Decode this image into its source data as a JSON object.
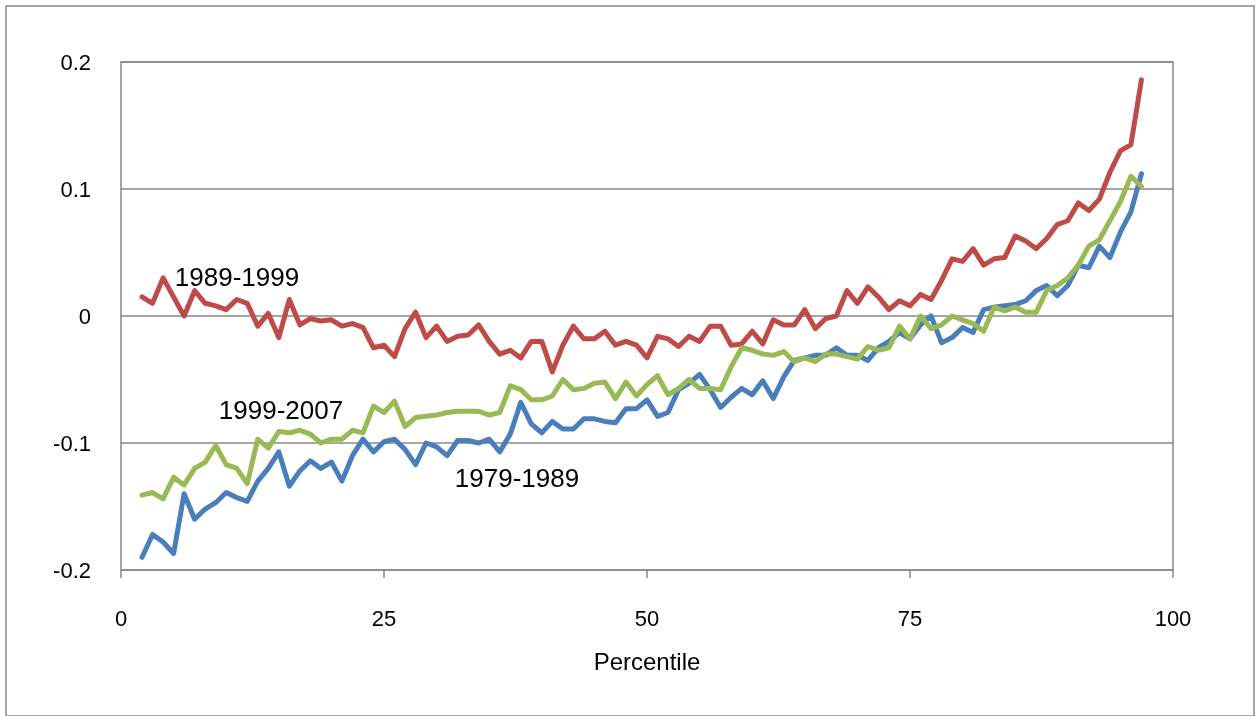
{
  "chart_data": {
    "type": "line",
    "xlabel": "Percentile",
    "x": [
      2,
      3,
      4,
      5,
      6,
      7,
      8,
      9,
      10,
      11,
      12,
      13,
      14,
      15,
      16,
      17,
      18,
      19,
      20,
      21,
      22,
      23,
      24,
      25,
      26,
      27,
      28,
      29,
      30,
      31,
      32,
      33,
      34,
      35,
      36,
      37,
      38,
      39,
      40,
      41,
      42,
      43,
      44,
      45,
      46,
      47,
      48,
      49,
      50,
      51,
      52,
      53,
      54,
      55,
      56,
      57,
      58,
      59,
      60,
      61,
      62,
      63,
      64,
      65,
      66,
      67,
      68,
      69,
      70,
      71,
      72,
      73,
      74,
      75,
      76,
      77,
      78,
      79,
      80,
      81,
      82,
      83,
      84,
      85,
      86,
      87,
      88,
      89,
      90,
      91,
      92,
      93,
      94,
      95,
      96,
      97
    ],
    "series": [
      {
        "name": "1979-1989",
        "color": "#4a7ebb",
        "values": [
          -0.19,
          -0.172,
          -0.178,
          -0.187,
          -0.14,
          -0.16,
          -0.152,
          -0.147,
          -0.139,
          -0.143,
          -0.146,
          -0.13,
          -0.12,
          -0.107,
          -0.134,
          -0.122,
          -0.114,
          -0.12,
          -0.115,
          -0.13,
          -0.11,
          -0.097,
          -0.107,
          -0.099,
          -0.097,
          -0.105,
          -0.117,
          -0.1,
          -0.103,
          -0.11,
          -0.098,
          -0.098,
          -0.1,
          -0.097,
          -0.107,
          -0.093,
          -0.068,
          -0.085,
          -0.092,
          -0.083,
          -0.089,
          -0.089,
          -0.081,
          -0.081,
          -0.083,
          -0.084,
          -0.073,
          -0.073,
          -0.066,
          -0.079,
          -0.076,
          -0.058,
          -0.053,
          -0.046,
          -0.058,
          -0.072,
          -0.064,
          -0.057,
          -0.062,
          -0.051,
          -0.065,
          -0.048,
          -0.035,
          -0.033,
          -0.031,
          -0.031,
          -0.025,
          -0.031,
          -0.031,
          -0.035,
          -0.025,
          -0.02,
          -0.013,
          -0.018,
          -0.007,
          0.0,
          -0.021,
          -0.017,
          -0.009,
          -0.013,
          0.005,
          0.007,
          0.008,
          0.009,
          0.012,
          0.02,
          0.024,
          0.016,
          0.024,
          0.04,
          0.038,
          0.055,
          0.046,
          0.066,
          0.082,
          0.112
        ]
      },
      {
        "name": "1989-1999",
        "color": "#be4b48",
        "values": [
          0.015,
          0.01,
          0.03,
          0.015,
          0.0,
          0.02,
          0.01,
          0.008,
          0.005,
          0.013,
          0.01,
          -0.008,
          0.002,
          -0.017,
          0.013,
          -0.007,
          -0.002,
          -0.004,
          -0.003,
          -0.008,
          -0.006,
          -0.009,
          -0.025,
          -0.023,
          -0.032,
          -0.01,
          0.003,
          -0.017,
          -0.008,
          -0.02,
          -0.016,
          -0.015,
          -0.007,
          -0.02,
          -0.03,
          -0.027,
          -0.033,
          -0.02,
          -0.02,
          -0.044,
          -0.023,
          -0.008,
          -0.018,
          -0.018,
          -0.012,
          -0.023,
          -0.02,
          -0.023,
          -0.033,
          -0.016,
          -0.018,
          -0.024,
          -0.016,
          -0.02,
          -0.008,
          -0.008,
          -0.023,
          -0.022,
          -0.012,
          -0.022,
          -0.003,
          -0.007,
          -0.007,
          0.005,
          -0.01,
          -0.002,
          0.0,
          0.02,
          0.01,
          0.023,
          0.015,
          0.005,
          0.012,
          0.008,
          0.017,
          0.013,
          0.028,
          0.045,
          0.043,
          0.053,
          0.04,
          0.045,
          0.046,
          0.063,
          0.059,
          0.053,
          0.061,
          0.072,
          0.075,
          0.089,
          0.083,
          0.092,
          0.113,
          0.13,
          0.135,
          0.186
        ]
      },
      {
        "name": "1999-2007",
        "color": "#98b954",
        "values": [
          -0.141,
          -0.139,
          -0.144,
          -0.127,
          -0.133,
          -0.12,
          -0.115,
          -0.102,
          -0.117,
          -0.12,
          -0.132,
          -0.097,
          -0.104,
          -0.091,
          -0.092,
          -0.09,
          -0.093,
          -0.1,
          -0.097,
          -0.097,
          -0.09,
          -0.092,
          -0.071,
          -0.076,
          -0.067,
          -0.087,
          -0.08,
          -0.079,
          -0.078,
          -0.076,
          -0.075,
          -0.075,
          -0.075,
          -0.078,
          -0.076,
          -0.055,
          -0.058,
          -0.066,
          -0.066,
          -0.063,
          -0.05,
          -0.058,
          -0.057,
          -0.053,
          -0.052,
          -0.065,
          -0.052,
          -0.063,
          -0.054,
          -0.047,
          -0.062,
          -0.057,
          -0.05,
          -0.057,
          -0.057,
          -0.058,
          -0.04,
          -0.025,
          -0.027,
          -0.03,
          -0.031,
          -0.028,
          -0.036,
          -0.033,
          -0.036,
          -0.03,
          -0.03,
          -0.032,
          -0.034,
          -0.024,
          -0.027,
          -0.025,
          -0.008,
          -0.018,
          0.0,
          -0.01,
          -0.007,
          0.0,
          -0.003,
          -0.006,
          -0.012,
          0.007,
          0.004,
          0.007,
          0.003,
          0.003,
          0.02,
          0.024,
          0.03,
          0.04,
          0.055,
          0.06,
          0.075,
          0.09,
          0.11,
          0.102
        ]
      }
    ],
    "xlim": [
      0,
      100
    ],
    "xticks": [
      0,
      25,
      50,
      75,
      100
    ],
    "ylim": [
      -0.2,
      0.2
    ],
    "yticks": [
      -0.2,
      -0.1,
      0,
      0.1,
      0.2
    ],
    "grid": "y",
    "marker": "none",
    "line_style": "solid"
  }
}
